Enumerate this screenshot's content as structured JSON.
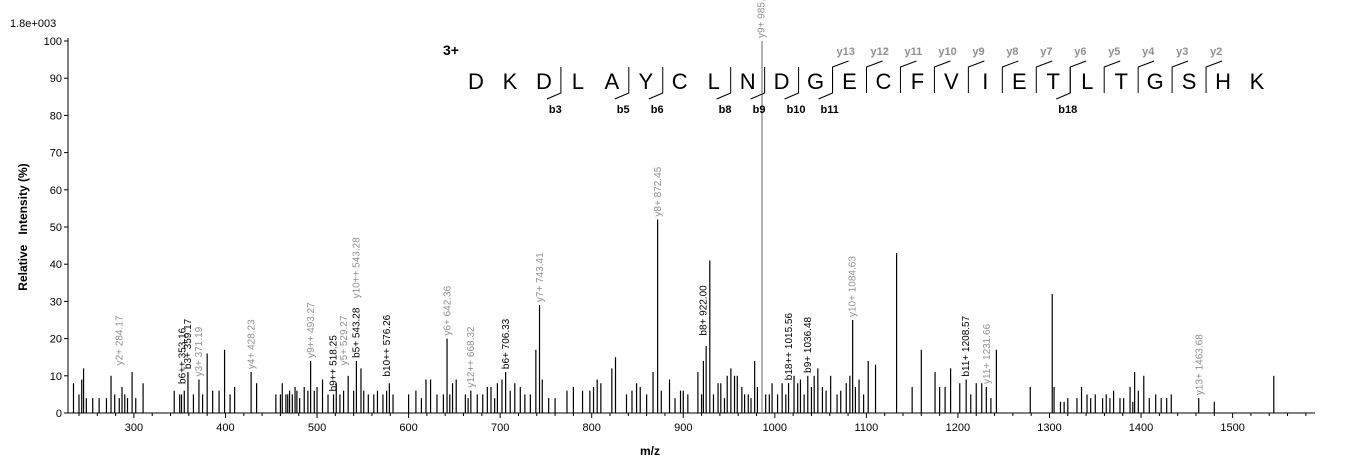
{
  "chart_data": {
    "type": "bar",
    "scale_label": "1.8e+003",
    "xlabel": "m/z",
    "ylabel": "Relative   Intensity (%)",
    "xlim": [
      228,
      1590
    ],
    "ylim": [
      0,
      100
    ],
    "xticks": [
      300,
      400,
      500,
      600,
      700,
      800,
      900,
      1000,
      1100,
      1200,
      1300,
      1400,
      1500
    ],
    "yticks": [
      0,
      10,
      20,
      30,
      40,
      50,
      60,
      70,
      80,
      90,
      100
    ],
    "peaks": [
      [
        234,
        8
      ],
      [
        240,
        5
      ],
      [
        243,
        9
      ],
      [
        245,
        12
      ],
      [
        248,
        4
      ],
      [
        255,
        4
      ],
      [
        262,
        4
      ],
      [
        270,
        4
      ],
      [
        275,
        10
      ],
      [
        279,
        5
      ],
      [
        284,
        4
      ],
      [
        287,
        7
      ],
      [
        290,
        5
      ],
      [
        293,
        4
      ],
      [
        298,
        11
      ],
      [
        302,
        4
      ],
      [
        310,
        8
      ],
      [
        344,
        6
      ],
      [
        350,
        5
      ],
      [
        352,
        5
      ],
      [
        355,
        6
      ],
      [
        359,
        11
      ],
      [
        365,
        5
      ],
      [
        371,
        9
      ],
      [
        375,
        5
      ],
      [
        380,
        16
      ],
      [
        386,
        6
      ],
      [
        393,
        6
      ],
      [
        399,
        17
      ],
      [
        405,
        5
      ],
      [
        410,
        7
      ],
      [
        428,
        11
      ],
      [
        434,
        8
      ],
      [
        455,
        5
      ],
      [
        460,
        5
      ],
      [
        462,
        8
      ],
      [
        466,
        5
      ],
      [
        468,
        5
      ],
      [
        470,
        6
      ],
      [
        473,
        5
      ],
      [
        476,
        7
      ],
      [
        478,
        6
      ],
      [
        481,
        4
      ],
      [
        486,
        7
      ],
      [
        490,
        6
      ],
      [
        493,
        14
      ],
      [
        497,
        6
      ],
      [
        500,
        7
      ],
      [
        506,
        9
      ],
      [
        512,
        5
      ],
      [
        518,
        5
      ],
      [
        521,
        8
      ],
      [
        525,
        5
      ],
      [
        529,
        6
      ],
      [
        534,
        10
      ],
      [
        540,
        6
      ],
      [
        543,
        14
      ],
      [
        548,
        12
      ],
      [
        551,
        6
      ],
      [
        556,
        5
      ],
      [
        562,
        5
      ],
      [
        566,
        6
      ],
      [
        572,
        5
      ],
      [
        576,
        6
      ],
      [
        579,
        8
      ],
      [
        583,
        5
      ],
      [
        600,
        5
      ],
      [
        608,
        6
      ],
      [
        614,
        4
      ],
      [
        619,
        9
      ],
      [
        624,
        9
      ],
      [
        631,
        5
      ],
      [
        638,
        5
      ],
      [
        642,
        20
      ],
      [
        645,
        5
      ],
      [
        648,
        8
      ],
      [
        652,
        9
      ],
      [
        662,
        5
      ],
      [
        665,
        4
      ],
      [
        668,
        6
      ],
      [
        675,
        5
      ],
      [
        681,
        5
      ],
      [
        686,
        7
      ],
      [
        690,
        7
      ],
      [
        694,
        4
      ],
      [
        697,
        8
      ],
      [
        702,
        9
      ],
      [
        706,
        11
      ],
      [
        711,
        6
      ],
      [
        716,
        8
      ],
      [
        722,
        7
      ],
      [
        727,
        5
      ],
      [
        733,
        5
      ],
      [
        739,
        17
      ],
      [
        743,
        29
      ],
      [
        746,
        9
      ],
      [
        753,
        4
      ],
      [
        760,
        4
      ],
      [
        773,
        6
      ],
      [
        780,
        7
      ],
      [
        790,
        6
      ],
      [
        798,
        6
      ],
      [
        802,
        7
      ],
      [
        806,
        9
      ],
      [
        810,
        8
      ],
      [
        822,
        12
      ],
      [
        826,
        15
      ],
      [
        838,
        5
      ],
      [
        844,
        6
      ],
      [
        849,
        8
      ],
      [
        853,
        7
      ],
      [
        860,
        5
      ],
      [
        867,
        11
      ],
      [
        872,
        52
      ],
      [
        876,
        6
      ],
      [
        885,
        9
      ],
      [
        891,
        4
      ],
      [
        897,
        6
      ],
      [
        900,
        6
      ],
      [
        905,
        5
      ],
      [
        916,
        11
      ],
      [
        920,
        5
      ],
      [
        922,
        14
      ],
      [
        925,
        18
      ],
      [
        929,
        41
      ],
      [
        933,
        5
      ],
      [
        938,
        8
      ],
      [
        941,
        8
      ],
      [
        945,
        4
      ],
      [
        948,
        10
      ],
      [
        952,
        12
      ],
      [
        956,
        10
      ],
      [
        959,
        10
      ],
      [
        964,
        7
      ],
      [
        967,
        5
      ],
      [
        971,
        5
      ],
      [
        974,
        4
      ],
      [
        978,
        14
      ],
      [
        981,
        7
      ],
      [
        986,
        100
      ],
      [
        990,
        5
      ],
      [
        994,
        5
      ],
      [
        997,
        8
      ],
      [
        1003,
        5
      ],
      [
        1008,
        8
      ],
      [
        1012,
        5
      ],
      [
        1015,
        8
      ],
      [
        1021,
        10
      ],
      [
        1025,
        8
      ],
      [
        1028,
        9
      ],
      [
        1032,
        5
      ],
      [
        1036,
        10
      ],
      [
        1040,
        7
      ],
      [
        1043,
        10
      ],
      [
        1047,
        12
      ],
      [
        1052,
        7
      ],
      [
        1056,
        6
      ],
      [
        1061,
        10
      ],
      [
        1068,
        5
      ],
      [
        1072,
        6
      ],
      [
        1078,
        8
      ],
      [
        1082,
        10
      ],
      [
        1085,
        25
      ],
      [
        1088,
        7
      ],
      [
        1092,
        9
      ],
      [
        1097,
        5
      ],
      [
        1102,
        14
      ],
      [
        1110,
        13
      ],
      [
        1133,
        43
      ],
      [
        1150,
        7
      ],
      [
        1160,
        17
      ],
      [
        1175,
        11
      ],
      [
        1180,
        7
      ],
      [
        1186,
        7
      ],
      [
        1192,
        12
      ],
      [
        1202,
        8
      ],
      [
        1209,
        9
      ],
      [
        1214,
        5
      ],
      [
        1220,
        8
      ],
      [
        1226,
        8
      ],
      [
        1231,
        7
      ],
      [
        1236,
        4
      ],
      [
        1242,
        17
      ],
      [
        1279,
        7
      ],
      [
        1303,
        32
      ],
      [
        1305,
        7
      ],
      [
        1312,
        3
      ],
      [
        1316,
        3
      ],
      [
        1320,
        4
      ],
      [
        1330,
        4
      ],
      [
        1335,
        7
      ],
      [
        1341,
        5
      ],
      [
        1345,
        4
      ],
      [
        1350,
        5
      ],
      [
        1358,
        4
      ],
      [
        1362,
        5
      ],
      [
        1366,
        4
      ],
      [
        1370,
        6
      ],
      [
        1377,
        4
      ],
      [
        1381,
        4
      ],
      [
        1388,
        7
      ],
      [
        1391,
        3
      ],
      [
        1393,
        11
      ],
      [
        1397,
        6
      ],
      [
        1403,
        10
      ],
      [
        1409,
        4
      ],
      [
        1416,
        5
      ],
      [
        1422,
        4
      ],
      [
        1428,
        4
      ],
      [
        1433,
        5
      ],
      [
        1463,
        4
      ],
      [
        1480,
        3
      ],
      [
        1545,
        10
      ]
    ],
    "annotations": [
      {
        "label": "y2+ 284.17",
        "mz": 284.17,
        "y": 12,
        "color": "#909090"
      },
      {
        "label": "b6++ 353.16",
        "mz": 353.16,
        "y": 7,
        "color": "#000000"
      },
      {
        "label": "b3+ 359.17",
        "mz": 359.17,
        "y": 11,
        "color": "#000000"
      },
      {
        "label": "y3+ 371.19",
        "mz": 371.19,
        "y": 9,
        "color": "#909090"
      },
      {
        "label": "y4+ 428.23",
        "mz": 428.23,
        "y": 11,
        "color": "#909090"
      },
      {
        "label": "y9++ 493.27",
        "mz": 493.27,
        "y": 14,
        "color": "#909090"
      },
      {
        "label": "b9++ 518.25",
        "mz": 518.25,
        "y": 5,
        "color": "#000000"
      },
      {
        "label": "y5+ 529.27",
        "mz": 529.27,
        "y": 12,
        "color": "#909090"
      },
      {
        "label": "y10++ 543.28",
        "mz": 543.28,
        "y": 30,
        "color": "#909090"
      },
      {
        "label": "b5+ 543.28",
        "mz": 543.28,
        "y": 14,
        "color": "#000000"
      },
      {
        "label": "b10++ 576.26",
        "mz": 576.26,
        "y": 9,
        "color": "#000000"
      },
      {
        "label": "y6+ 642.36",
        "mz": 642.36,
        "y": 20,
        "color": "#909090"
      },
      {
        "label": "y12++ 668.32",
        "mz": 668.32,
        "y": 6,
        "color": "#909090"
      },
      {
        "label": "b6+ 706.33",
        "mz": 706.33,
        "y": 11,
        "color": "#000000"
      },
      {
        "label": "y7+ 743.41",
        "mz": 743.41,
        "y": 29,
        "color": "#909090"
      },
      {
        "label": "y8+ 872.45",
        "mz": 872.45,
        "y": 52,
        "color": "#909090"
      },
      {
        "label": "b8+ 922.00",
        "mz": 922.0,
        "y": 20,
        "color": "#000000"
      },
      {
        "label": "y9+ 985.51",
        "mz": 985.51,
        "y": 100,
        "color": "#909090"
      },
      {
        "label": "b18++ 1015.56",
        "mz": 1015.56,
        "y": 8,
        "color": "#000000"
      },
      {
        "label": "b9+ 1036.48",
        "mz": 1036.48,
        "y": 10,
        "color": "#000000"
      },
      {
        "label": "y10+ 1084.63",
        "mz": 1084.63,
        "y": 25,
        "color": "#909090"
      },
      {
        "label": "b11+ 1208.57",
        "mz": 1208.57,
        "y": 9,
        "color": "#000000"
      },
      {
        "label": "y11+ 1231.66",
        "mz": 1231.66,
        "y": 7,
        "color": "#909090"
      },
      {
        "label": "y13+ 1463.68",
        "mz": 1463.68,
        "y": 4,
        "color": "#909090"
      }
    ],
    "sequence": {
      "charge": "3+",
      "residues": [
        "D",
        "K",
        "D",
        "L",
        "A",
        "Y",
        "C",
        "L",
        "N",
        "D",
        "G",
        "E",
        "C",
        "F",
        "V",
        "I",
        "E",
        "T",
        "L",
        "T",
        "G",
        "S",
        "H",
        "K"
      ],
      "y_ions": [
        {
          "after": 10,
          "label": "y13"
        },
        {
          "after": 11,
          "label": "y12"
        },
        {
          "after": 12,
          "label": "y11"
        },
        {
          "after": 13,
          "label": "y10"
        },
        {
          "after": 14,
          "label": "y9"
        },
        {
          "after": 15,
          "label": "y8"
        },
        {
          "after": 16,
          "label": "y7"
        },
        {
          "after": 17,
          "label": "y6"
        },
        {
          "after": 18,
          "label": "y5"
        },
        {
          "after": 19,
          "label": "y4"
        },
        {
          "after": 20,
          "label": "y3"
        },
        {
          "after": 21,
          "label": "y2"
        }
      ],
      "b_ions": [
        {
          "after": 2,
          "label": "b3"
        },
        {
          "after": 4,
          "label": "b5"
        },
        {
          "after": 5,
          "label": "b6"
        },
        {
          "after": 7,
          "label": "b8"
        },
        {
          "after": 8,
          "label": "b9"
        },
        {
          "after": 9,
          "label": "b10"
        },
        {
          "after": 10,
          "label": "b11"
        },
        {
          "after": 17,
          "label": "b18"
        }
      ]
    },
    "colors": {
      "peak": "#000000",
      "y_ion": "#909090",
      "b_ion": "#000000",
      "highlight_peak": "#808080"
    }
  }
}
